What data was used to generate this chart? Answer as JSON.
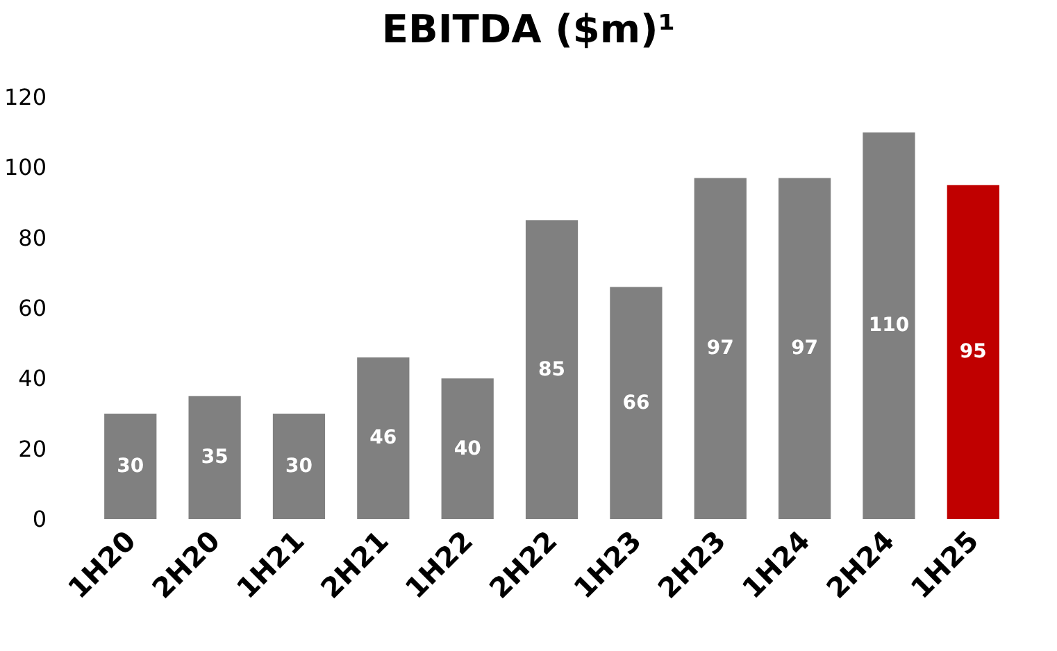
{
  "chart_data": {
    "type": "bar",
    "title": "EBITDA ($m)¹",
    "categories": [
      "1H20",
      "2H20",
      "1H21",
      "2H21",
      "1H22",
      "2H22",
      "1H23",
      "2H23",
      "1H24",
      "2H24",
      "1H25"
    ],
    "values": [
      30,
      35,
      30,
      46,
      40,
      85,
      66,
      97,
      97,
      110,
      95
    ],
    "colors": [
      "#808080",
      "#808080",
      "#808080",
      "#808080",
      "#808080",
      "#808080",
      "#808080",
      "#808080",
      "#808080",
      "#808080",
      "#c00000"
    ],
    "ylim": [
      0,
      120
    ],
    "yticks": [
      0,
      20,
      40,
      60,
      80,
      100,
      120
    ],
    "data_labels": true
  }
}
